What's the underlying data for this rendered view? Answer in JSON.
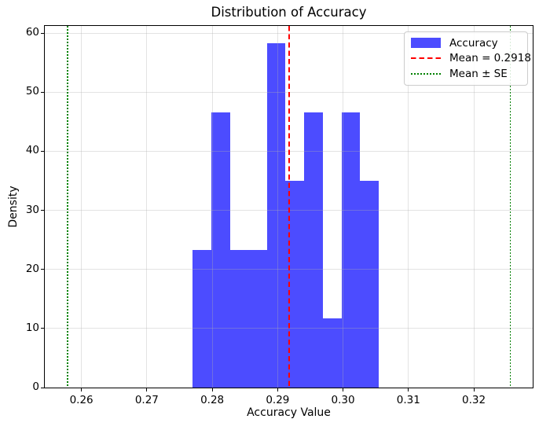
{
  "chart_data": {
    "type": "bar",
    "subtype": "histogram",
    "title": "Distribution of Accuracy",
    "xlabel": "Accuracy Value",
    "ylabel": "Density",
    "series_name": "Accuracy",
    "bin_edges": [
      0.277,
      0.2799,
      0.2827,
      0.2855,
      0.2884,
      0.2912,
      0.2941,
      0.2969,
      0.2998,
      0.3026,
      0.3055
    ],
    "densities": [
      23.3,
      46.6,
      23.3,
      23.3,
      58.3,
      35.0,
      46.6,
      11.7,
      46.6,
      35.0
    ],
    "bin_counts": [
      2,
      4,
      2,
      2,
      5,
      3,
      4,
      1,
      4,
      3
    ],
    "mean": 0.2918,
    "se": 0.0338,
    "mean_line_x": 0.2918,
    "se_lines_x": [
      0.2579,
      0.3256
    ],
    "xtick_values": [
      0.26,
      0.27,
      0.28,
      0.29,
      0.3,
      0.31,
      0.32
    ],
    "xtick_labels": [
      "0.26",
      "0.27",
      "0.28",
      "0.29",
      "0.30",
      "0.31",
      "0.32"
    ],
    "ytick_values": [
      0,
      10,
      20,
      30,
      40,
      50,
      60
    ],
    "ytick_labels": [
      "0",
      "10",
      "20",
      "30",
      "40",
      "50",
      "60"
    ],
    "xlim": [
      0.2544,
      0.329
    ],
    "ylim": [
      0,
      61.2
    ],
    "grid": true,
    "legend_position": "upper right",
    "legend": [
      {
        "label": "Accuracy",
        "marker": "patch",
        "color": "rgba(0,0,255,0.7)"
      },
      {
        "label": "Mean = 0.2918",
        "marker": "dashed-line",
        "color": "#ff0000"
      },
      {
        "label": "Mean ± SE",
        "marker": "dotted-line",
        "color": "#008000"
      }
    ],
    "colors": {
      "bar_fill": "rgba(0,0,255,0.7)",
      "mean_line": "#ff0000",
      "se_line": "#008000",
      "grid_line": "rgba(176,176,176,0.35)",
      "spine": "#000000"
    }
  }
}
